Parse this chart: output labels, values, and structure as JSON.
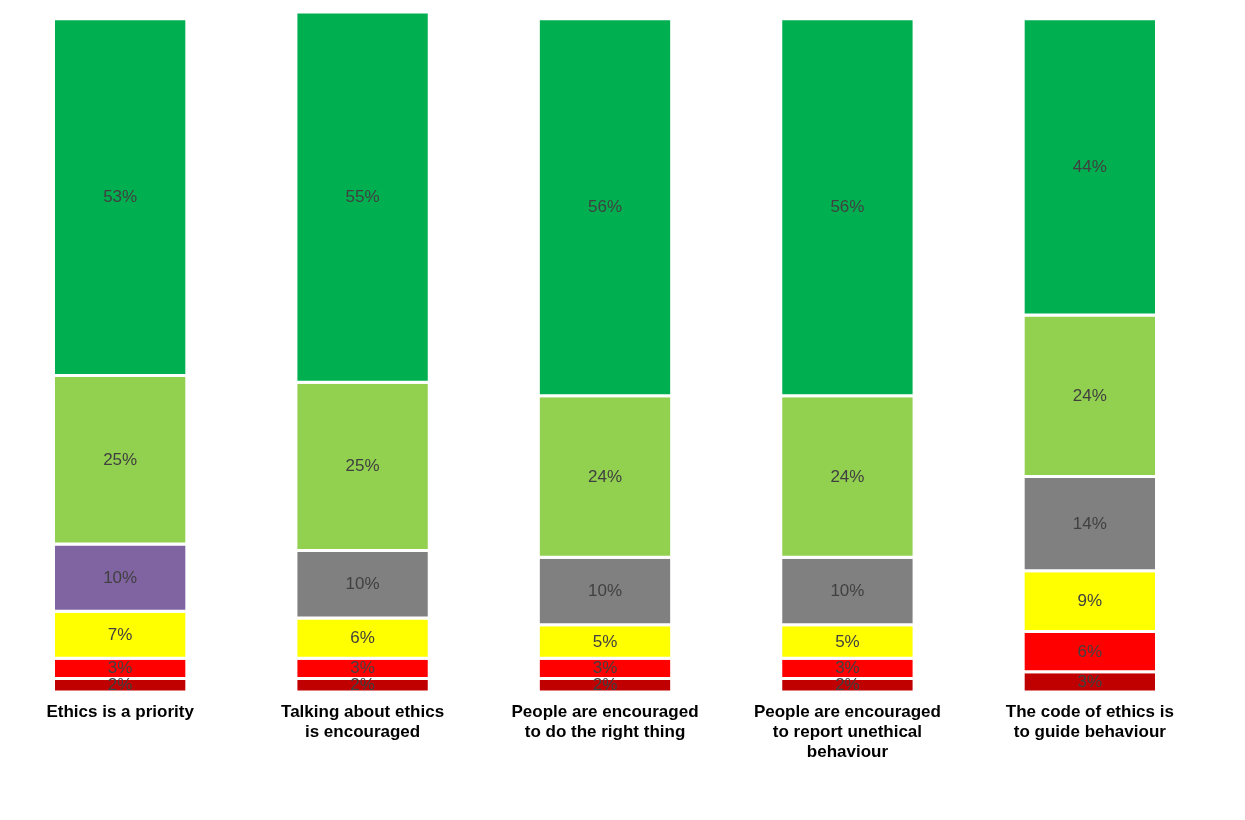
{
  "chart_data": {
    "type": "bar",
    "stacked": true,
    "categories": [
      "Ethics is a priority",
      "Talking about ethics is encouraged",
      "People are encouraged to do the right thing",
      "People are encouraged to report unethical behaviour",
      "The code of ethics is to guide behaviour"
    ],
    "series": [
      {
        "color": "#c00000",
        "values": [
          2,
          2,
          2,
          2,
          3
        ],
        "value_labels": [
          "2%",
          "2%",
          "2%",
          "2%",
          "3%"
        ]
      },
      {
        "color": "#ff0000",
        "values": [
          3,
          3,
          3,
          3,
          6
        ],
        "value_labels": [
          "3%",
          "3%",
          "3%",
          "3%",
          "6%"
        ]
      },
      {
        "color": "#ffff00",
        "values": [
          7,
          6,
          5,
          5,
          9
        ],
        "value_labels": [
          "7%",
          "6%",
          "5%",
          "5%",
          "9%"
        ]
      },
      {
        "colors": [
          "#8064a2",
          "#808080",
          "#808080",
          "#808080",
          "#808080"
        ],
        "values": [
          10,
          10,
          10,
          10,
          14
        ],
        "value_labels": [
          "10%",
          "10%",
          "10%",
          "10%",
          "14%"
        ]
      },
      {
        "color": "#92d050",
        "values": [
          25,
          25,
          24,
          24,
          24
        ],
        "value_labels": [
          "25%",
          "25%",
          "24%",
          "24%",
          "24%"
        ]
      },
      {
        "color": "#00b050",
        "values": [
          53,
          55,
          56,
          56,
          44
        ],
        "value_labels": [
          "53%",
          "55%",
          "56%",
          "56%",
          "44%"
        ]
      }
    ],
    "grid": false
  }
}
